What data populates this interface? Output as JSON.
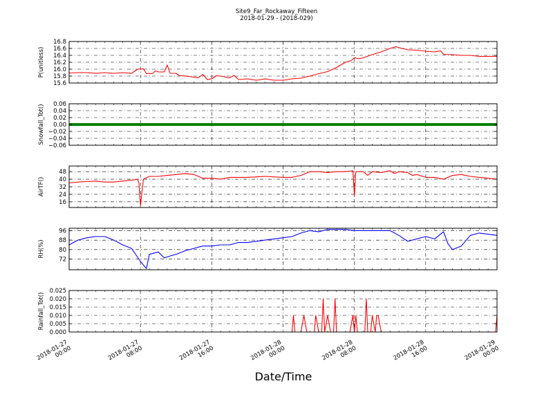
{
  "figure": {
    "title_line1": "Site9_Far_Rockaway_Fifteen",
    "title_line2": "2018-01-29 - (2018-029)",
    "xlabel": "Date/Time"
  },
  "chart_data": {
    "type": "line",
    "x_range": [
      "2018-01-27 00:00",
      "2018-01-29 00:00"
    ],
    "x_ticks": [
      {
        "value": "2018-01-27 00:00",
        "date": "2018-01-27",
        "time": "00:00"
      },
      {
        "value": "2018-01-27 08:00",
        "date": "2018-01-27",
        "time": "08:00"
      },
      {
        "value": "2018-01-27 16:00",
        "date": "2018-01-27",
        "time": "16:00"
      },
      {
        "value": "2018-01-28 00:00",
        "date": "2018-01-28",
        "time": "00:00"
      },
      {
        "value": "2018-01-28 08:00",
        "date": "2018-01-28",
        "time": "08:00"
      },
      {
        "value": "2018-01-28 16:00",
        "date": "2018-01-28",
        "time": "16:00"
      },
      {
        "value": "2018-01-29 00:00",
        "date": "2018-01-29",
        "time": "00:00"
      }
    ],
    "grid": true,
    "panels": [
      {
        "ylabel": "P(unitless)",
        "ylim": [
          15.6,
          16.8
        ],
        "yticks": [
          "15.6",
          "15.8",
          "16.0",
          "16.2",
          "16.4",
          "16.6",
          "16.8"
        ],
        "color": "#ff0000",
        "series": [
          {
            "x": "2018-01-27 00:00",
            "y": 15.89
          },
          {
            "x": "2018-01-27 01:00",
            "y": 15.9
          },
          {
            "x": "2018-01-27 02:00",
            "y": 15.9
          },
          {
            "x": "2018-01-27 03:00",
            "y": 15.88
          },
          {
            "x": "2018-01-27 04:00",
            "y": 15.9
          },
          {
            "x": "2018-01-27 05:00",
            "y": 15.88
          },
          {
            "x": "2018-01-27 06:00",
            "y": 15.9
          },
          {
            "x": "2018-01-27 07:00",
            "y": 15.88
          },
          {
            "x": "2018-01-27 07:40",
            "y": 16.0
          },
          {
            "x": "2018-01-27 08:20",
            "y": 16.01
          },
          {
            "x": "2018-01-27 08:40",
            "y": 15.87
          },
          {
            "x": "2018-01-27 09:20",
            "y": 15.87
          },
          {
            "x": "2018-01-27 09:40",
            "y": 15.95
          },
          {
            "x": "2018-01-27 10:00",
            "y": 15.92
          },
          {
            "x": "2018-01-27 10:40",
            "y": 15.92
          },
          {
            "x": "2018-01-27 11:00",
            "y": 16.12
          },
          {
            "x": "2018-01-27 11:20",
            "y": 15.88
          },
          {
            "x": "2018-01-27 12:00",
            "y": 15.88
          },
          {
            "x": "2018-01-27 12:20",
            "y": 15.82
          },
          {
            "x": "2018-01-27 13:00",
            "y": 15.8
          },
          {
            "x": "2018-01-27 14:00",
            "y": 15.77
          },
          {
            "x": "2018-01-27 14:30",
            "y": 15.75
          },
          {
            "x": "2018-01-27 15:00",
            "y": 15.85
          },
          {
            "x": "2018-01-27 15:30",
            "y": 15.7
          },
          {
            "x": "2018-01-27 16:00",
            "y": 15.72
          },
          {
            "x": "2018-01-27 16:30",
            "y": 15.81
          },
          {
            "x": "2018-01-27 17:00",
            "y": 15.8
          },
          {
            "x": "2018-01-27 18:00",
            "y": 15.75
          },
          {
            "x": "2018-01-27 18:30",
            "y": 15.82
          },
          {
            "x": "2018-01-27 19:00",
            "y": 15.7
          },
          {
            "x": "2018-01-27 20:00",
            "y": 15.72
          },
          {
            "x": "2018-01-27 21:00",
            "y": 15.68
          },
          {
            "x": "2018-01-27 22:00",
            "y": 15.72
          },
          {
            "x": "2018-01-27 23:00",
            "y": 15.68
          },
          {
            "x": "2018-01-28 00:00",
            "y": 15.68
          },
          {
            "x": "2018-01-28 01:00",
            "y": 15.72
          },
          {
            "x": "2018-01-28 02:00",
            "y": 15.74
          },
          {
            "x": "2018-01-28 03:00",
            "y": 15.8
          },
          {
            "x": "2018-01-28 04:00",
            "y": 15.87
          },
          {
            "x": "2018-01-28 05:00",
            "y": 15.93
          },
          {
            "x": "2018-01-28 06:00",
            "y": 16.05
          },
          {
            "x": "2018-01-28 07:00",
            "y": 16.2
          },
          {
            "x": "2018-01-28 07:40",
            "y": 16.25
          },
          {
            "x": "2018-01-28 08:00",
            "y": 16.33
          },
          {
            "x": "2018-01-28 08:30",
            "y": 16.3
          },
          {
            "x": "2018-01-28 09:00",
            "y": 16.33
          },
          {
            "x": "2018-01-28 10:00",
            "y": 16.42
          },
          {
            "x": "2018-01-28 11:00",
            "y": 16.5
          },
          {
            "x": "2018-01-28 12:00",
            "y": 16.6
          },
          {
            "x": "2018-01-28 12:40",
            "y": 16.65
          },
          {
            "x": "2018-01-28 13:20",
            "y": 16.6
          },
          {
            "x": "2018-01-28 14:00",
            "y": 16.56
          },
          {
            "x": "2018-01-28 15:00",
            "y": 16.55
          },
          {
            "x": "2018-01-28 16:00",
            "y": 16.52
          },
          {
            "x": "2018-01-28 17:00",
            "y": 16.5
          },
          {
            "x": "2018-01-28 17:40",
            "y": 16.53
          },
          {
            "x": "2018-01-28 18:00",
            "y": 16.43
          },
          {
            "x": "2018-01-28 19:00",
            "y": 16.42
          },
          {
            "x": "2018-01-28 20:00",
            "y": 16.4
          },
          {
            "x": "2018-01-28 21:00",
            "y": 16.4
          },
          {
            "x": "2018-01-28 22:00",
            "y": 16.37
          },
          {
            "x": "2018-01-28 23:00",
            "y": 16.37
          },
          {
            "x": "2018-01-29 00:00",
            "y": 16.37
          }
        ]
      },
      {
        "ylabel": "Snowfall_Tot()",
        "ylim": [
          -0.06,
          0.06
        ],
        "yticks": [
          "−0.06",
          "−0.04",
          "−0.02",
          "0.00",
          "0.02",
          "0.04",
          "0.06"
        ],
        "color": "#008000",
        "series": [
          {
            "x": "2018-01-27 00:00",
            "y": 0.0
          },
          {
            "x": "2018-01-29 00:00",
            "y": 0.0
          }
        ]
      },
      {
        "ylabel": "AirTF()",
        "ylim": [
          10,
          54
        ],
        "yticks": [
          "16",
          "24",
          "32",
          "40",
          "48"
        ],
        "color": "#ff0000",
        "series": [
          {
            "x": "2018-01-27 00:00",
            "y": 36
          },
          {
            "x": "2018-01-27 01:00",
            "y": 37
          },
          {
            "x": "2018-01-27 02:00",
            "y": 37.5
          },
          {
            "x": "2018-01-27 03:00",
            "y": 38
          },
          {
            "x": "2018-01-27 04:00",
            "y": 37
          },
          {
            "x": "2018-01-27 05:00",
            "y": 37
          },
          {
            "x": "2018-01-27 06:00",
            "y": 38
          },
          {
            "x": "2018-01-27 07:00",
            "y": 39
          },
          {
            "x": "2018-01-27 07:40",
            "y": 40
          },
          {
            "x": "2018-01-27 07:50",
            "y": 36
          },
          {
            "x": "2018-01-27 08:00",
            "y": 12
          },
          {
            "x": "2018-01-27 08:20",
            "y": 40
          },
          {
            "x": "2018-01-27 09:00",
            "y": 43
          },
          {
            "x": "2018-01-27 10:00",
            "y": 43
          },
          {
            "x": "2018-01-27 11:00",
            "y": 44
          },
          {
            "x": "2018-01-27 12:00",
            "y": 45
          },
          {
            "x": "2018-01-27 13:00",
            "y": 46
          },
          {
            "x": "2018-01-27 14:00",
            "y": 45
          },
          {
            "x": "2018-01-27 15:00",
            "y": 41
          },
          {
            "x": "2018-01-27 16:00",
            "y": 41
          },
          {
            "x": "2018-01-27 17:00",
            "y": 40
          },
          {
            "x": "2018-01-27 18:00",
            "y": 42
          },
          {
            "x": "2018-01-27 19:00",
            "y": 42
          },
          {
            "x": "2018-01-27 20:00",
            "y": 42
          },
          {
            "x": "2018-01-27 22:00",
            "y": 43
          },
          {
            "x": "2018-01-28 00:00",
            "y": 42
          },
          {
            "x": "2018-01-28 01:00",
            "y": 42
          },
          {
            "x": "2018-01-28 02:00",
            "y": 44
          },
          {
            "x": "2018-01-28 03:00",
            "y": 48
          },
          {
            "x": "2018-01-28 04:00",
            "y": 48
          },
          {
            "x": "2018-01-28 05:00",
            "y": 47
          },
          {
            "x": "2018-01-28 06:00",
            "y": 48
          },
          {
            "x": "2018-01-28 07:00",
            "y": 48
          },
          {
            "x": "2018-01-28 07:50",
            "y": 49
          },
          {
            "x": "2018-01-28 08:00",
            "y": 22
          },
          {
            "x": "2018-01-28 08:10",
            "y": 48
          },
          {
            "x": "2018-01-28 09:00",
            "y": 48
          },
          {
            "x": "2018-01-28 09:30",
            "y": 44
          },
          {
            "x": "2018-01-28 10:00",
            "y": 48
          },
          {
            "x": "2018-01-28 11:00",
            "y": 47
          },
          {
            "x": "2018-01-28 12:00",
            "y": 49
          },
          {
            "x": "2018-01-28 12:30",
            "y": 46
          },
          {
            "x": "2018-01-28 13:00",
            "y": 48
          },
          {
            "x": "2018-01-28 14:00",
            "y": 47
          },
          {
            "x": "2018-01-28 14:30",
            "y": 44
          },
          {
            "x": "2018-01-28 15:00",
            "y": 45
          },
          {
            "x": "2018-01-28 16:00",
            "y": 42
          },
          {
            "x": "2018-01-28 17:00",
            "y": 42
          },
          {
            "x": "2018-01-28 18:00",
            "y": 40
          },
          {
            "x": "2018-01-28 19:00",
            "y": 44
          },
          {
            "x": "2018-01-28 20:00",
            "y": 45
          },
          {
            "x": "2018-01-28 21:00",
            "y": 43
          },
          {
            "x": "2018-01-28 22:00",
            "y": 42
          },
          {
            "x": "2018-01-28 23:00",
            "y": 41
          },
          {
            "x": "2018-01-29 00:00",
            "y": 40
          }
        ]
      },
      {
        "ylabel": "RH(%)",
        "ylim": [
          63,
          98
        ],
        "yticks": [
          "72",
          "80",
          "88",
          "96"
        ],
        "color": "#0000ff",
        "series": [
          {
            "x": "2018-01-27 00:00",
            "y": 84
          },
          {
            "x": "2018-01-27 01:00",
            "y": 88
          },
          {
            "x": "2018-01-27 02:00",
            "y": 90
          },
          {
            "x": "2018-01-27 03:00",
            "y": 91
          },
          {
            "x": "2018-01-27 04:00",
            "y": 91
          },
          {
            "x": "2018-01-27 05:00",
            "y": 88
          },
          {
            "x": "2018-01-27 06:00",
            "y": 84
          },
          {
            "x": "2018-01-27 07:00",
            "y": 81
          },
          {
            "x": "2018-01-27 08:00",
            "y": 70
          },
          {
            "x": "2018-01-27 08:40",
            "y": 64
          },
          {
            "x": "2018-01-27 09:00",
            "y": 76
          },
          {
            "x": "2018-01-27 10:00",
            "y": 78
          },
          {
            "x": "2018-01-27 10:40",
            "y": 73
          },
          {
            "x": "2018-01-27 11:30",
            "y": 75
          },
          {
            "x": "2018-01-27 12:00",
            "y": 76
          },
          {
            "x": "2018-01-27 13:00",
            "y": 79
          },
          {
            "x": "2018-01-27 14:00",
            "y": 81
          },
          {
            "x": "2018-01-27 15:00",
            "y": 83
          },
          {
            "x": "2018-01-27 16:00",
            "y": 83
          },
          {
            "x": "2018-01-27 17:00",
            "y": 84
          },
          {
            "x": "2018-01-27 18:00",
            "y": 84
          },
          {
            "x": "2018-01-27 19:00",
            "y": 86
          },
          {
            "x": "2018-01-27 20:00",
            "y": 86
          },
          {
            "x": "2018-01-27 21:00",
            "y": 87
          },
          {
            "x": "2018-01-27 22:00",
            "y": 88
          },
          {
            "x": "2018-01-27 23:00",
            "y": 89
          },
          {
            "x": "2018-01-28 00:00",
            "y": 90
          },
          {
            "x": "2018-01-28 01:00",
            "y": 91
          },
          {
            "x": "2018-01-28 02:00",
            "y": 94
          },
          {
            "x": "2018-01-28 03:00",
            "y": 96
          },
          {
            "x": "2018-01-28 04:00",
            "y": 95
          },
          {
            "x": "2018-01-28 05:00",
            "y": 97
          },
          {
            "x": "2018-01-28 06:00",
            "y": 97
          },
          {
            "x": "2018-01-28 07:00",
            "y": 97
          },
          {
            "x": "2018-01-28 08:00",
            "y": 96
          },
          {
            "x": "2018-01-28 09:00",
            "y": 96
          },
          {
            "x": "2018-01-28 10:00",
            "y": 96
          },
          {
            "x": "2018-01-28 11:00",
            "y": 96
          },
          {
            "x": "2018-01-28 12:00",
            "y": 96
          },
          {
            "x": "2018-01-28 13:00",
            "y": 92
          },
          {
            "x": "2018-01-28 14:00",
            "y": 87
          },
          {
            "x": "2018-01-28 15:00",
            "y": 89
          },
          {
            "x": "2018-01-28 16:00",
            "y": 91
          },
          {
            "x": "2018-01-28 17:00",
            "y": 89
          },
          {
            "x": "2018-01-28 18:00",
            "y": 95
          },
          {
            "x": "2018-01-28 18:30",
            "y": 85
          },
          {
            "x": "2018-01-28 19:00",
            "y": 80
          },
          {
            "x": "2018-01-28 20:00",
            "y": 83
          },
          {
            "x": "2018-01-28 21:00",
            "y": 92
          },
          {
            "x": "2018-01-28 22:00",
            "y": 94
          },
          {
            "x": "2018-01-28 23:00",
            "y": 93
          },
          {
            "x": "2018-01-29 00:00",
            "y": 92
          }
        ]
      },
      {
        "ylabel": "Rainfall_Tot()",
        "ylim": [
          0.0,
          0.025
        ],
        "yticks": [
          "0.000",
          "0.005",
          "0.010",
          "0.015",
          "0.020",
          "0.025"
        ],
        "color": "#ff0000",
        "series": [
          {
            "x": "2018-01-27 00:00",
            "y": 0.0
          },
          {
            "x": "2018-01-28 01:00",
            "y": 0.0
          },
          {
            "x": "2018-01-28 01:10",
            "y": 0.01
          },
          {
            "x": "2018-01-28 01:20",
            "y": 0.0
          },
          {
            "x": "2018-01-28 02:00",
            "y": 0.0
          },
          {
            "x": "2018-01-28 02:20",
            "y": 0.01
          },
          {
            "x": "2018-01-28 02:40",
            "y": 0.0
          },
          {
            "x": "2018-01-28 03:30",
            "y": 0.0
          },
          {
            "x": "2018-01-28 03:40",
            "y": 0.01
          },
          {
            "x": "2018-01-28 04:00",
            "y": 0.0
          },
          {
            "x": "2018-01-28 04:20",
            "y": 0.0
          },
          {
            "x": "2018-01-28 04:30",
            "y": 0.02
          },
          {
            "x": "2018-01-28 04:40",
            "y": 0.0
          },
          {
            "x": "2018-01-28 05:00",
            "y": 0.01
          },
          {
            "x": "2018-01-28 05:20",
            "y": 0.0
          },
          {
            "x": "2018-01-28 05:40",
            "y": 0.0
          },
          {
            "x": "2018-01-28 05:50",
            "y": 0.02
          },
          {
            "x": "2018-01-28 06:00",
            "y": 0.0
          },
          {
            "x": "2018-01-28 07:30",
            "y": 0.0
          },
          {
            "x": "2018-01-28 07:50",
            "y": 0.01
          },
          {
            "x": "2018-01-28 08:00",
            "y": 0.0
          },
          {
            "x": "2018-01-28 08:10",
            "y": 0.01
          },
          {
            "x": "2018-01-28 08:20",
            "y": 0.0
          },
          {
            "x": "2018-01-28 09:10",
            "y": 0.0
          },
          {
            "x": "2018-01-28 09:20",
            "y": 0.02
          },
          {
            "x": "2018-01-28 09:30",
            "y": 0.0
          },
          {
            "x": "2018-01-28 09:50",
            "y": 0.0
          },
          {
            "x": "2018-01-28 10:00",
            "y": 0.01
          },
          {
            "x": "2018-01-28 10:20",
            "y": 0.0
          },
          {
            "x": "2018-01-28 10:30",
            "y": 0.01
          },
          {
            "x": "2018-01-28 10:40",
            "y": 0.01
          },
          {
            "x": "2018-01-28 11:00",
            "y": 0.0
          },
          {
            "x": "2018-01-28 23:50",
            "y": 0.0
          },
          {
            "x": "2018-01-29 00:00",
            "y": 0.01
          }
        ]
      }
    ]
  }
}
